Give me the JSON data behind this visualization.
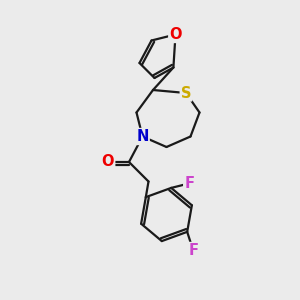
{
  "bg_color": "#ebebeb",
  "bond_color": "#1a1a1a",
  "bond_width": 1.6,
  "atom_colors": {
    "O": "#ee0000",
    "S": "#ccaa00",
    "N": "#0000cc",
    "F": "#cc44cc",
    "C": "#1a1a1a"
  },
  "font_size_atoms": 10.5
}
